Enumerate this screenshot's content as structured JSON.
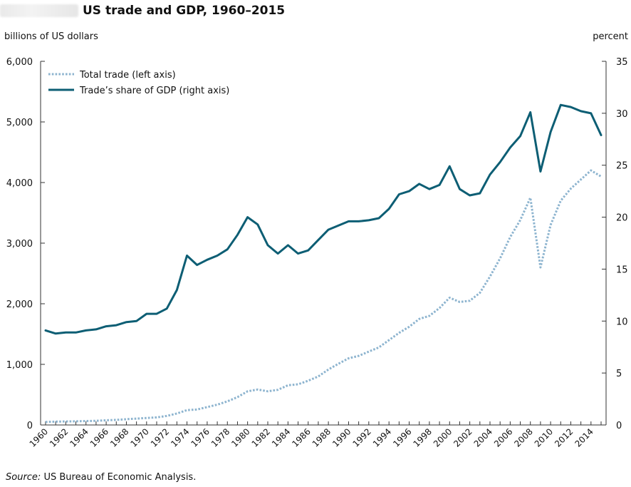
{
  "title": "US trade and GDP, 1960–2015",
  "left_axis_title": "billions of US dollars",
  "right_axis_title": "percent",
  "source": {
    "label": "Source:",
    "text": " US Bureau of Economic Analysis."
  },
  "colors": {
    "total_trade": "#8db4cf",
    "share_of_gdp": "#0d5e74",
    "axis": "#333333"
  },
  "chart_data": {
    "type": "line",
    "x": [
      1960,
      1961,
      1962,
      1963,
      1964,
      1965,
      1966,
      1967,
      1968,
      1969,
      1970,
      1971,
      1972,
      1973,
      1974,
      1975,
      1976,
      1977,
      1978,
      1979,
      1980,
      1981,
      1982,
      1983,
      1984,
      1985,
      1986,
      1987,
      1988,
      1989,
      1990,
      1991,
      1992,
      1993,
      1994,
      1995,
      1996,
      1997,
      1998,
      1999,
      2000,
      2001,
      2002,
      2003,
      2004,
      2005,
      2006,
      2007,
      2008,
      2009,
      2010,
      2011,
      2012,
      2013,
      2014,
      2015
    ],
    "x_tick_labels": [
      "1960",
      "1962",
      "1964",
      "1966",
      "1968",
      "1970",
      "1972",
      "1974",
      "1976",
      "1978",
      "1980",
      "1982",
      "1984",
      "1986",
      "1988",
      "1990",
      "1992",
      "1994",
      "1996",
      "1998",
      "2000",
      "2002",
      "2004",
      "2006",
      "2008",
      "2010",
      "2012",
      "2014"
    ],
    "y_left": {
      "range": [
        0,
        6000
      ],
      "tick_labels": [
        "0",
        "1,000",
        "2,000",
        "3,000",
        "4,000",
        "5,000",
        "6,000"
      ]
    },
    "y_right": {
      "range": [
        0,
        35
      ],
      "tick_labels": [
        "0",
        "5",
        "10",
        "15",
        "20",
        "25",
        "30",
        "35"
      ]
    },
    "grid": false,
    "legend_position": "top-left",
    "series": [
      {
        "name": "Total trade (left axis)",
        "axis": "left",
        "style": "dotted",
        "values": [
          50,
          55,
          58,
          60,
          65,
          68,
          78,
          83,
          95,
          105,
          115,
          125,
          150,
          190,
          245,
          255,
          295,
          335,
          390,
          460,
          555,
          585,
          555,
          580,
          655,
          670,
          730,
          800,
          915,
          1010,
          1100,
          1140,
          1210,
          1280,
          1400,
          1520,
          1620,
          1750,
          1800,
          1930,
          2100,
          2030,
          2050,
          2180,
          2450,
          2750,
          3100,
          3380,
          3750,
          2600,
          3300,
          3700,
          3900,
          4050,
          4200,
          4100
        ]
      },
      {
        "name": "Trade’s share of GDP (right axis)",
        "axis": "right",
        "style": "solid",
        "values": [
          9.1,
          8.8,
          8.9,
          8.9,
          9.1,
          9.2,
          9.5,
          9.6,
          9.9,
          10.0,
          10.7,
          10.7,
          11.2,
          13.0,
          16.3,
          15.4,
          15.9,
          16.3,
          16.9,
          18.3,
          20.0,
          19.3,
          17.3,
          16.5,
          17.3,
          16.5,
          16.8,
          17.8,
          18.8,
          19.2,
          19.6,
          19.6,
          19.7,
          19.9,
          20.8,
          22.2,
          22.5,
          23.2,
          22.7,
          23.1,
          24.9,
          22.7,
          22.1,
          22.3,
          24.1,
          25.3,
          26.7,
          27.8,
          30.1,
          24.4,
          28.2,
          30.8,
          30.6,
          30.2,
          30.0,
          27.9
        ]
      }
    ]
  }
}
